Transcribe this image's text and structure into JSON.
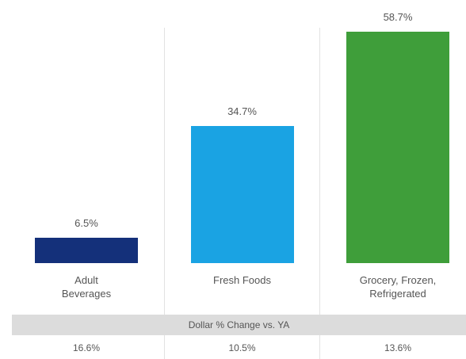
{
  "chart_data": {
    "type": "bar",
    "categories": [
      "Adult Beverages",
      "Fresh Foods",
      "Grocery, Frozen, Refrigerated"
    ],
    "values": [
      6.5,
      34.7,
      58.7
    ],
    "value_labels": [
      "6.5%",
      "34.7%",
      "58.7%"
    ],
    "colors": [
      "#14307a",
      "#1aa3e3",
      "#3f9e3a"
    ],
    "table": {
      "title": "Dollar % Change vs. YA",
      "values": [
        "16.6%",
        "10.5%",
        "13.6%"
      ]
    }
  }
}
